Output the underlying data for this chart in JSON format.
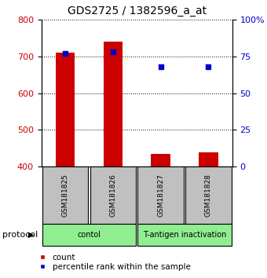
{
  "title": "GDS2725 / 1382596_a_at",
  "samples": [
    "GSM181825",
    "GSM181826",
    "GSM181827",
    "GSM181828"
  ],
  "counts": [
    710,
    740,
    435,
    440
  ],
  "percentile_ranks": [
    77,
    78,
    68,
    68
  ],
  "ylim_left": [
    400,
    800
  ],
  "ylim_right": [
    0,
    100
  ],
  "left_ticks": [
    400,
    500,
    600,
    700,
    800
  ],
  "right_ticks": [
    0,
    25,
    50,
    75,
    100
  ],
  "right_tick_labels": [
    "0",
    "25",
    "50",
    "75",
    "100%"
  ],
  "bar_color": "#cc0000",
  "scatter_color": "#0000cc",
  "bar_width": 0.4,
  "protocol_groups": [
    {
      "label": "contol",
      "samples": [
        0,
        1
      ],
      "color": "#90ee90"
    },
    {
      "label": "T-antigen inactivation",
      "samples": [
        2,
        3
      ],
      "color": "#90ee90"
    }
  ],
  "protocol_label": "protocol",
  "legend_count_label": "count",
  "legend_percentile_label": "percentile rank within the sample",
  "left_axis_color": "#cc0000",
  "right_axis_color": "#0000cc",
  "background_color": "#ffffff",
  "sample_box_color": "#c0c0c0",
  "title_fontsize": 10
}
